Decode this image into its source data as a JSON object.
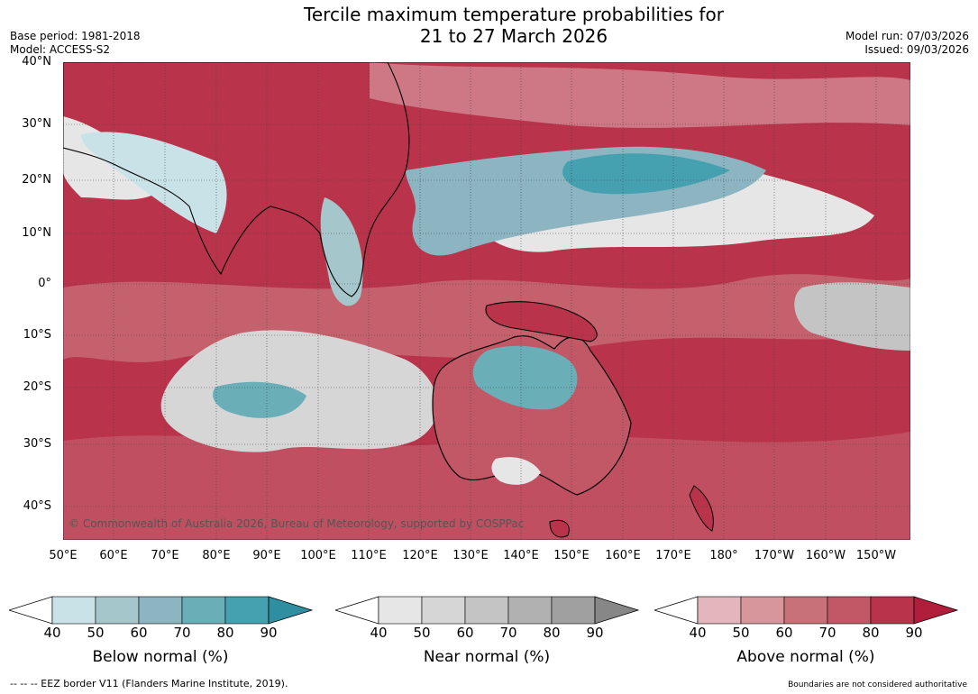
{
  "title_line1": "Tercile maximum temperature probabilities for",
  "title_line2": "21 to 27 March 2026",
  "base_period": "Base period: 1981-2018",
  "model": "Model: ACCESS-S2",
  "model_run": "Model run: 07/03/2026",
  "issued": "Issued: 09/03/2026",
  "copyright": "© Commonwealth of Australia 2026, Bureau of Meteorology, supported by COSPPac",
  "lat_labels": [
    "40°N",
    "30°N",
    "20°N",
    "10°N",
    "0°",
    "10°S",
    "20°S",
    "30°S",
    "40°S"
  ],
  "lon_labels": [
    "50°E",
    "60°E",
    "70°E",
    "80°E",
    "90°E",
    "100°E",
    "110°E",
    "120°E",
    "130°E",
    "140°E",
    "150°E",
    "160°E",
    "170°E",
    "180°",
    "170°W",
    "160°W",
    "150°W"
  ],
  "colorbars": [
    {
      "title": "Below normal (%)",
      "ticks": [
        "40",
        "50",
        "60",
        "70",
        "80",
        "90"
      ],
      "colors": [
        "#c9e2e8",
        "#a5c6ca",
        "#8db5c1",
        "#6aaeb8",
        "#45a0b0",
        "#2f8fa0"
      ]
    },
    {
      "title": "Near normal (%)",
      "ticks": [
        "40",
        "50",
        "60",
        "70",
        "80",
        "90"
      ],
      "colors": [
        "#e6e6e6",
        "#d6d6d6",
        "#c4c4c4",
        "#b1b1b1",
        "#a0a0a0",
        "#878787"
      ]
    },
    {
      "title": "Above normal (%)",
      "ticks": [
        "40",
        "50",
        "60",
        "70",
        "80",
        "90"
      ],
      "colors": [
        "#e2b6bc",
        "#d6969c",
        "#c97179",
        "#c25866",
        "#b9334a",
        "#b01e3c"
      ]
    }
  ],
  "footer_left": "--  --  -- EEZ border V11 (Flanders Marine Institute, 2019).",
  "footer_right": "Boundaries are not considered authoritative"
}
